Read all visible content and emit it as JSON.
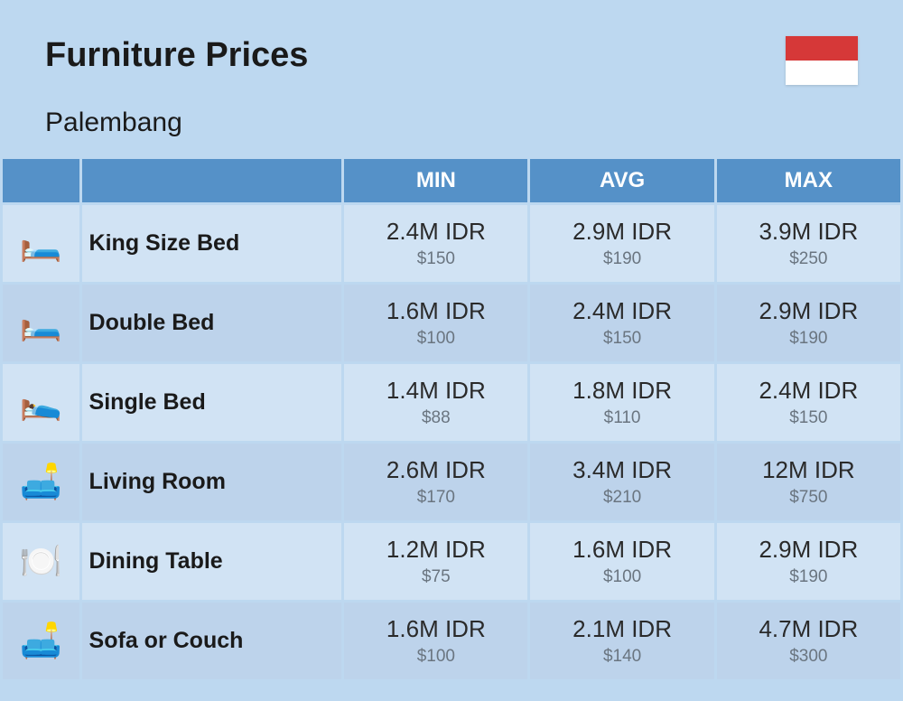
{
  "title": "Furniture Prices",
  "subtitle": "Palembang",
  "flag": {
    "top": "#d63838",
    "bottom": "#ffffff"
  },
  "columns": [
    "MIN",
    "AVG",
    "MAX"
  ],
  "rows": [
    {
      "icon": "🛏️",
      "name": "King Size Bed",
      "min": {
        "idr": "2.4M IDR",
        "usd": "$150"
      },
      "avg": {
        "idr": "2.9M IDR",
        "usd": "$190"
      },
      "max": {
        "idr": "3.9M IDR",
        "usd": "$250"
      }
    },
    {
      "icon": "🛏️",
      "name": "Double Bed",
      "min": {
        "idr": "1.6M IDR",
        "usd": "$100"
      },
      "avg": {
        "idr": "2.4M IDR",
        "usd": "$150"
      },
      "max": {
        "idr": "2.9M IDR",
        "usd": "$190"
      }
    },
    {
      "icon": "🛌",
      "name": "Single Bed",
      "min": {
        "idr": "1.4M IDR",
        "usd": "$88"
      },
      "avg": {
        "idr": "1.8M IDR",
        "usd": "$110"
      },
      "max": {
        "idr": "2.4M IDR",
        "usd": "$150"
      }
    },
    {
      "icon": "🛋️",
      "name": "Living Room",
      "min": {
        "idr": "2.6M IDR",
        "usd": "$170"
      },
      "avg": {
        "idr": "3.4M IDR",
        "usd": "$210"
      },
      "max": {
        "idr": "12M IDR",
        "usd": "$750"
      }
    },
    {
      "icon": "🍽️",
      "name": "Dining Table",
      "min": {
        "idr": "1.2M IDR",
        "usd": "$75"
      },
      "avg": {
        "idr": "1.6M IDR",
        "usd": "$100"
      },
      "max": {
        "idr": "2.9M IDR",
        "usd": "$190"
      }
    },
    {
      "icon": "🛋️",
      "name": "Sofa or Couch",
      "min": {
        "idr": "1.6M IDR",
        "usd": "$100"
      },
      "avg": {
        "idr": "2.1M IDR",
        "usd": "$140"
      },
      "max": {
        "idr": "4.7M IDR",
        "usd": "$300"
      }
    }
  ],
  "colors": {
    "page_bg": "#bdd8f0",
    "header_bg": "#5591c8",
    "row_even": "#d1e3f4",
    "row_odd": "#bdd3eb",
    "text_main": "#1a1a1a",
    "text_sub": "#6a7580"
  }
}
